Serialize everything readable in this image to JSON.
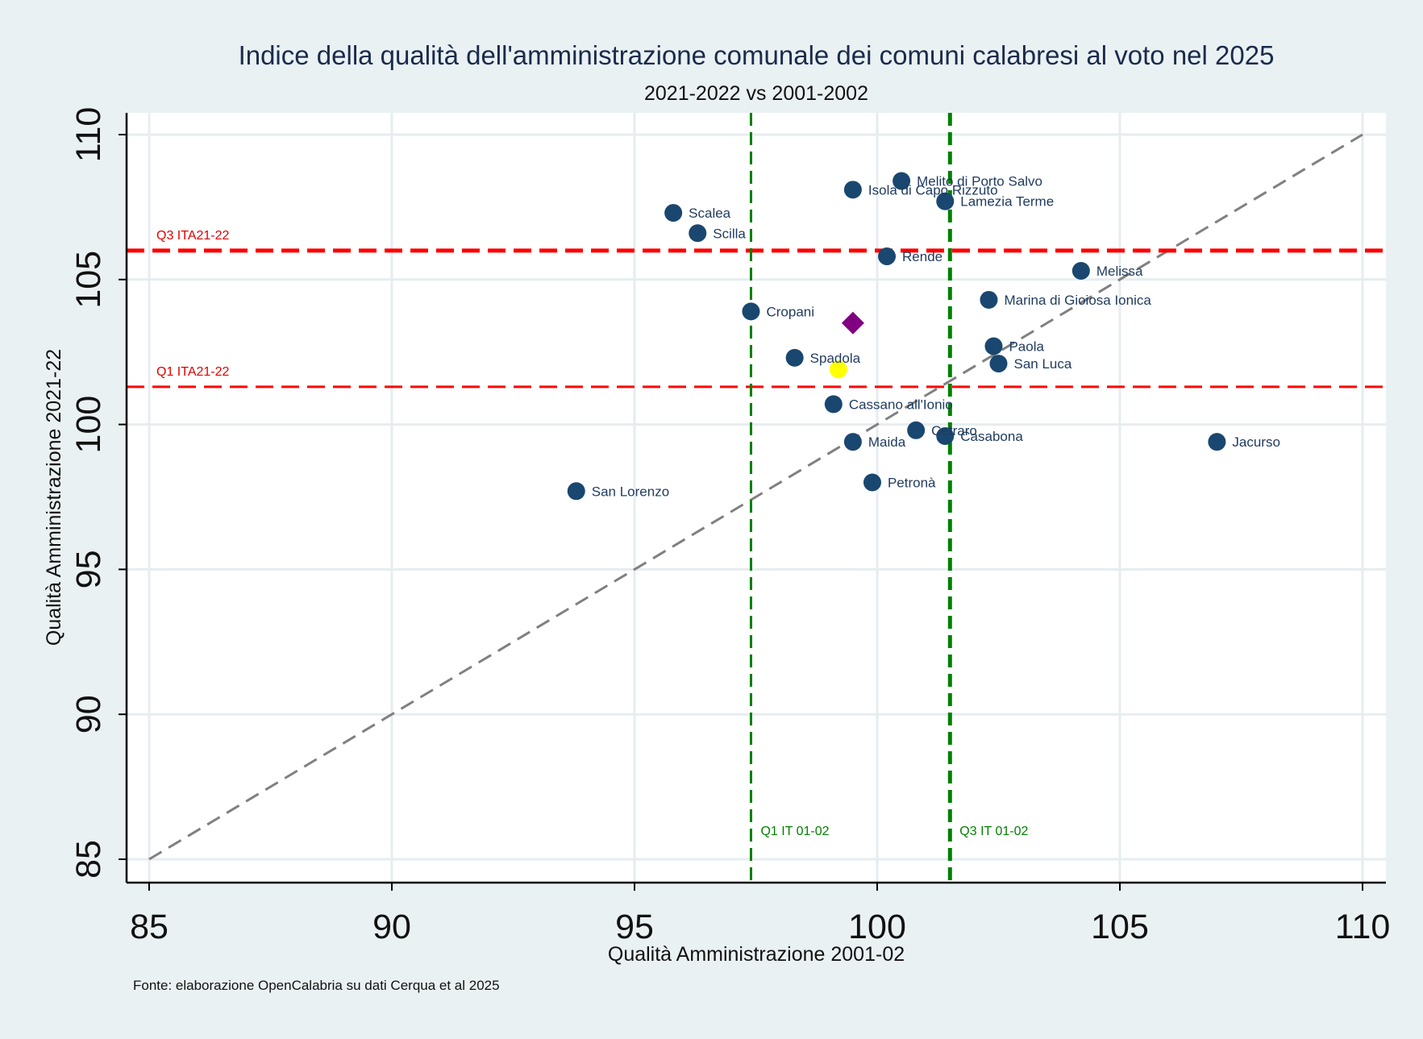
{
  "chart_data": {
    "type": "scatter",
    "title": "Indice della qualità dell'amministrazione comunale dei comuni calabresi al voto nel 2025",
    "subtitle": "2021-2022 vs 2001-2002",
    "xlabel": "Qualità Amministrazione 2001-02",
    "ylabel": "Qualità Amministrazione 2021-22",
    "source": "Fonte: elaborazione OpenCalabria su dati Cerqua et al 2025",
    "xlim": [
      85,
      110
    ],
    "ylim": [
      85,
      110
    ],
    "xticks": [
      "85",
      "90",
      "95",
      "100",
      "105",
      "110"
    ],
    "yticks": [
      "85",
      "90",
      "95",
      "100",
      "105",
      "110"
    ],
    "grid": true,
    "colors": {
      "background": "#eaf1f3",
      "plot_background": "#ffffff",
      "grid": "#e6edf0",
      "points": "#1a476f",
      "diamond": "#800080",
      "highlight": "#ffff00",
      "q_italy_2122": "#ff0000",
      "q_italy_0102": "#008000",
      "diagonal": "#808080"
    },
    "reference_lines": {
      "horizontal": [
        {
          "label": "Q3 ITA21-22",
          "y": 106.0
        },
        {
          "label": "Q1 ITA21-22",
          "y": 101.3
        }
      ],
      "vertical": [
        {
          "label": "Q1 IT 01-02",
          "x": 97.4
        },
        {
          "label": "Q3 IT 01-02",
          "x": 101.5
        }
      ],
      "diagonal": {
        "from": [
          85,
          85
        ],
        "to": [
          110,
          110
        ]
      }
    },
    "points": [
      {
        "label": "Melito di Porto Salvo",
        "x": 100.5,
        "y": 108.4
      },
      {
        "label": "Isola di Capo Rizzuto",
        "x": 99.5,
        "y": 108.1
      },
      {
        "label": "Lamezia Terme",
        "x": 101.4,
        "y": 107.7
      },
      {
        "label": "Scalea",
        "x": 95.8,
        "y": 107.3
      },
      {
        "label": "Scilla",
        "x": 96.3,
        "y": 106.6
      },
      {
        "label": "Rende",
        "x": 100.2,
        "y": 105.8
      },
      {
        "label": "Melissa",
        "x": 104.2,
        "y": 105.3
      },
      {
        "label": "Marina di Gioiosa Ionica",
        "x": 102.3,
        "y": 104.3
      },
      {
        "label": "Cropani",
        "x": 97.4,
        "y": 103.9
      },
      {
        "label": "Paola",
        "x": 102.4,
        "y": 102.7
      },
      {
        "label": "Spadola",
        "x": 98.3,
        "y": 102.3
      },
      {
        "label": "San Luca",
        "x": 102.5,
        "y": 102.1
      },
      {
        "label": "Cassano all'Ionio",
        "x": 99.1,
        "y": 100.7
      },
      {
        "label": "Cetraro",
        "x": 100.8,
        "y": 99.8
      },
      {
        "label": "Casabona",
        "x": 101.4,
        "y": 99.6
      },
      {
        "label": "Jacurso",
        "x": 107.0,
        "y": 99.4
      },
      {
        "label": "Maida",
        "x": 99.5,
        "y": 99.4
      },
      {
        "label": "Petronà",
        "x": 99.9,
        "y": 98.0
      },
      {
        "label": "San Lorenzo",
        "x": 93.8,
        "y": 97.7
      }
    ],
    "special_markers": [
      {
        "shape": "diamond",
        "x": 99.5,
        "y": 103.5
      },
      {
        "shape": "circle-highlight",
        "x": 99.2,
        "y": 101.9
      }
    ]
  }
}
